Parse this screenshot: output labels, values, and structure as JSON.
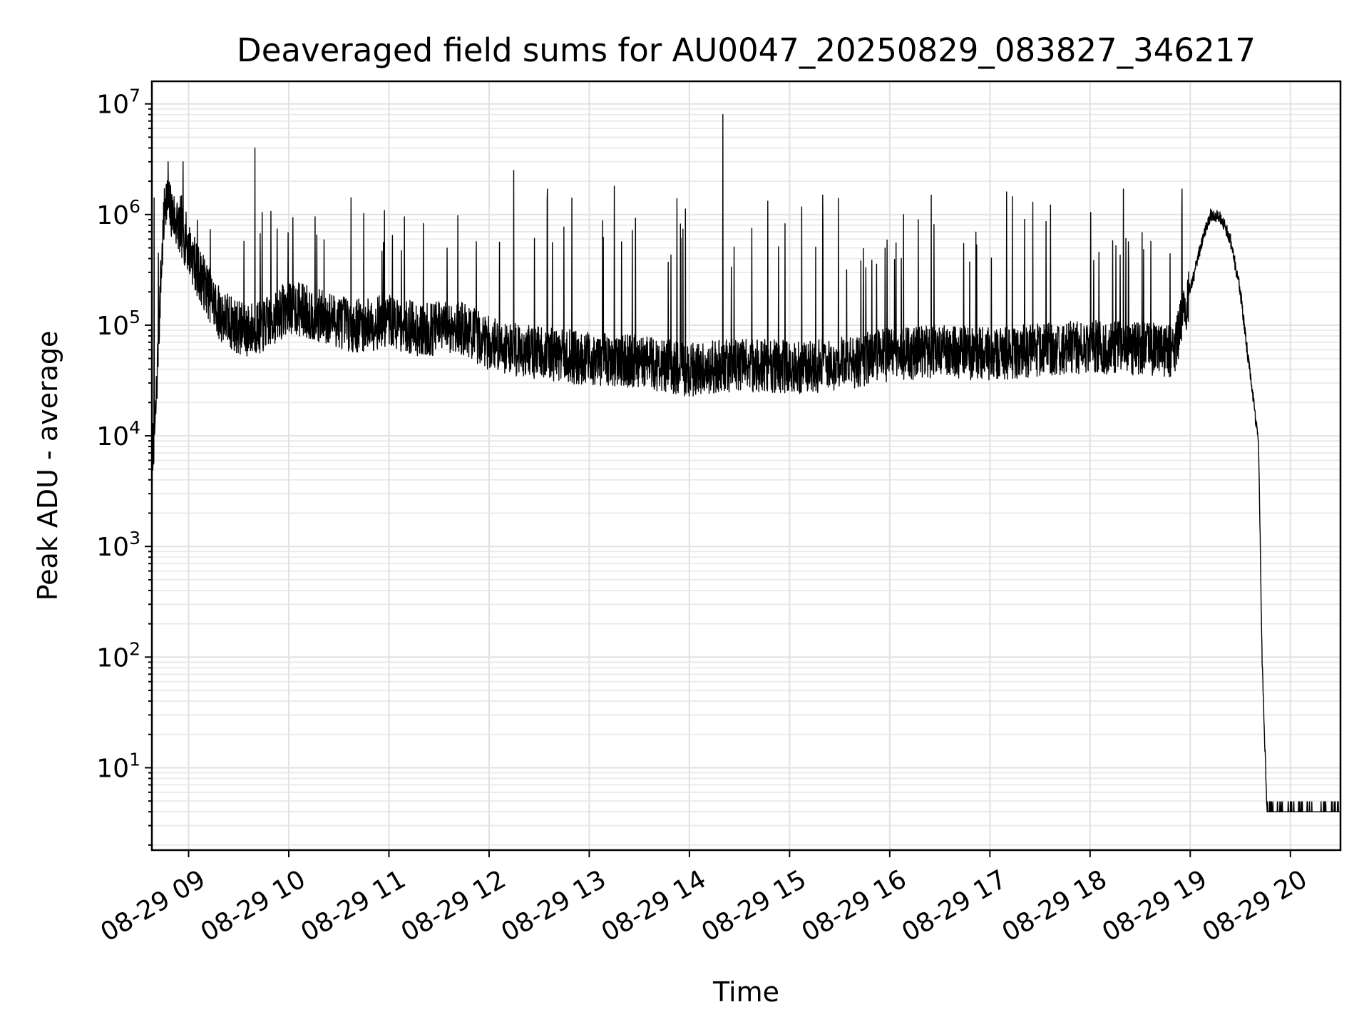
{
  "chart_data": {
    "type": "line",
    "title": "Deaveraged field sums for AU0047_20250829_083827_346217",
    "xlabel": "Time",
    "ylabel": "Peak ADU - average",
    "yscale": "log",
    "ylim": [
      1.8,
      16000000
    ],
    "xlim": [
      "2025-08-29 08:38",
      "2025-08-29 20:30"
    ],
    "grid": true,
    "x_ticks": [
      "08-29 09",
      "08-29 10",
      "08-29 11",
      "08-29 12",
      "08-29 13",
      "08-29 14",
      "08-29 15",
      "08-29 16",
      "08-29 17",
      "08-29 18",
      "08-29 19",
      "08-29 20"
    ],
    "y_ticks": [
      {
        "base": "10",
        "exp": "1",
        "value": 10
      },
      {
        "base": "10",
        "exp": "2",
        "value": 100
      },
      {
        "base": "10",
        "exp": "3",
        "value": 1000
      },
      {
        "base": "10",
        "exp": "4",
        "value": 10000
      },
      {
        "base": "10",
        "exp": "5",
        "value": 100000
      },
      {
        "base": "10",
        "exp": "6",
        "value": 1000000
      },
      {
        "base": "10",
        "exp": "7",
        "value": 10000000
      }
    ],
    "series": [
      {
        "color": "#000000",
        "x": [
          "2025-08-29 08:38",
          "2025-08-29 08:40",
          "2025-08-29 08:43",
          "2025-08-29 08:46",
          "2025-08-29 08:48",
          "2025-08-29 08:52",
          "2025-08-29 08:56",
          "2025-08-29 09:00",
          "2025-08-29 09:06",
          "2025-08-29 09:12",
          "2025-08-29 09:18",
          "2025-08-29 09:24",
          "2025-08-29 09:30",
          "2025-08-29 09:36",
          "2025-08-29 09:45",
          "2025-08-29 10:00",
          "2025-08-29 10:20",
          "2025-08-29 10:40",
          "2025-08-29 11:00",
          "2025-08-29 11:20",
          "2025-08-29 11:40",
          "2025-08-29 12:00",
          "2025-08-29 12:20",
          "2025-08-29 12:40",
          "2025-08-29 13:00",
          "2025-08-29 13:30",
          "2025-08-29 14:00",
          "2025-08-29 14:30",
          "2025-08-29 15:00",
          "2025-08-29 15:30",
          "2025-08-29 16:00",
          "2025-08-29 16:30",
          "2025-08-29 17:00",
          "2025-08-29 17:30",
          "2025-08-29 18:00",
          "2025-08-29 18:30",
          "2025-08-29 18:50",
          "2025-08-29 19:00",
          "2025-08-29 19:06",
          "2025-08-29 19:12",
          "2025-08-29 19:18",
          "2025-08-29 19:24",
          "2025-08-29 19:30",
          "2025-08-29 19:34",
          "2025-08-29 19:38",
          "2025-08-29 19:41",
          "2025-08-29 19:43",
          "2025-08-29 19:46",
          "2025-08-29 20:30"
        ],
        "y": [
          7000,
          12000,
          200000,
          1500000,
          1200000,
          900000,
          700000,
          500000,
          300000,
          200000,
          130000,
          110000,
          95000,
          90000,
          100000,
          150000,
          120000,
          100000,
          110000,
          90000,
          100000,
          70000,
          60000,
          55000,
          50000,
          48000,
          40000,
          45000,
          42000,
          45000,
          55000,
          60000,
          55000,
          60000,
          65000,
          62000,
          60000,
          200000,
          500000,
          1000000,
          950000,
          600000,
          200000,
          60000,
          20000,
          8000,
          100,
          4,
          4
        ]
      }
    ],
    "spikes": [
      {
        "x": "2025-08-29 08:48",
        "y": 3000000
      },
      {
        "x": "2025-08-29 08:57",
        "y": 3000000
      },
      {
        "x": "2025-08-29 09:40",
        "y": 4000000
      },
      {
        "x": "2025-08-29 12:15",
        "y": 2500000
      },
      {
        "x": "2025-08-29 12:35",
        "y": 1700000
      },
      {
        "x": "2025-08-29 13:15",
        "y": 1800000
      },
      {
        "x": "2025-08-29 14:20",
        "y": 8000000
      },
      {
        "x": "2025-08-29 15:20",
        "y": 1500000
      },
      {
        "x": "2025-08-29 17:10",
        "y": 1600000
      },
      {
        "x": "2025-08-29 18:20",
        "y": 1700000
      },
      {
        "x": "2025-08-29 18:55",
        "y": 1700000
      }
    ]
  }
}
